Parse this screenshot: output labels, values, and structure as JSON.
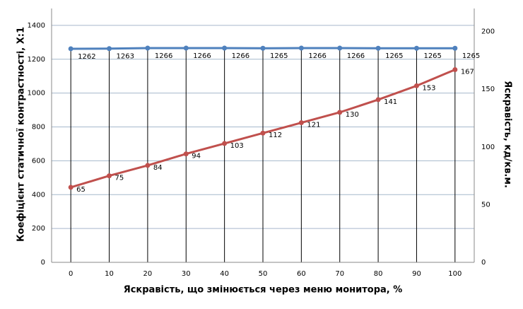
{
  "chart_data": {
    "type": "line",
    "x_label": "Яскравість, що змінюється через меню монитора, %",
    "y_label": "Коефіцієнт статичної контрастності, X:1",
    "y2_label": "Яскравість, кд/кв.м.",
    "x": [
      0,
      10,
      20,
      30,
      40,
      50,
      60,
      70,
      80,
      90,
      100
    ],
    "xlim": [
      -5,
      105
    ],
    "xticks": [
      0,
      10,
      20,
      30,
      40,
      50,
      60,
      70,
      80,
      90,
      100
    ],
    "ylim": [
      0,
      1500
    ],
    "yticks": [
      0,
      200,
      400,
      600,
      800,
      1000,
      1200,
      1400
    ],
    "y2lim": [
      0,
      220
    ],
    "y2ticks": [
      0,
      50,
      100,
      150,
      200
    ],
    "grid": true,
    "series": [
      {
        "color": "#4f81bd",
        "values": [
          1262,
          1263,
          1266,
          1266,
          1266,
          1265,
          1266,
          1266,
          1265,
          1265,
          1265
        ]
      },
      {
        "color": "#c0504d",
        "axis": "y2",
        "values": [
          65,
          75,
          84,
          94,
          103,
          112,
          121,
          130,
          141,
          153,
          167
        ]
      }
    ]
  }
}
